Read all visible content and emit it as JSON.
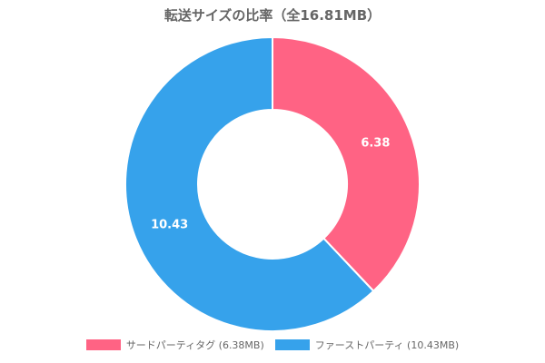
{
  "chart_data": {
    "type": "pie",
    "variant": "doughnut",
    "title": "転送サイズの比率（全16.81MB）",
    "categories": [
      "サードパーティタグ",
      "ファーストパーティ"
    ],
    "values": [
      6.38,
      10.43
    ],
    "value_labels": [
      "6.38",
      "10.43"
    ],
    "colors": [
      "#ff6384",
      "#36a2eb"
    ],
    "legend_position": "bottom",
    "legend": [
      {
        "label": "サードパーティタグ (6.38MB)",
        "color": "#ff6384"
      },
      {
        "label": "ファーストパーティ (10.43MB)",
        "color": "#36a2eb"
      }
    ]
  }
}
